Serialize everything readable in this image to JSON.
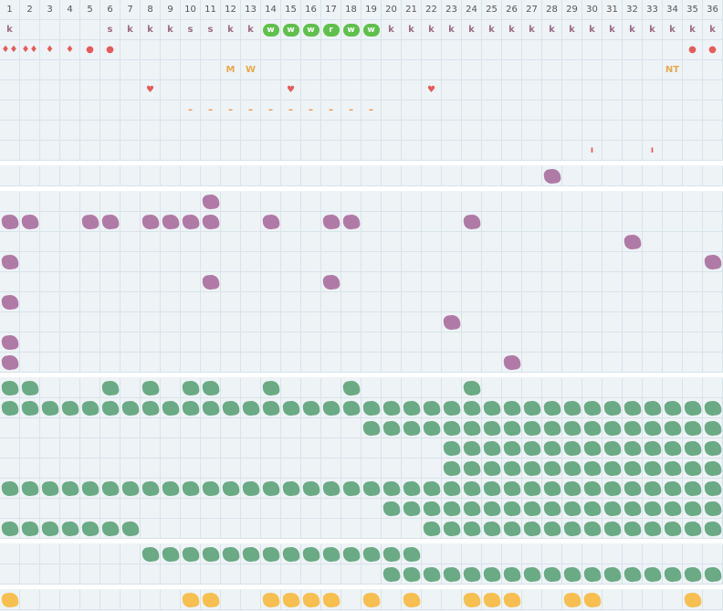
{
  "grid": {
    "columns": [
      "1",
      "2",
      "3",
      "4",
      "5",
      "6",
      "7",
      "8",
      "9",
      "10",
      "11",
      "12",
      "13",
      "14",
      "15",
      "16",
      "17",
      "18",
      "19",
      "20",
      "21",
      "22",
      "23",
      "24",
      "25",
      "26",
      "27",
      "28",
      "29",
      "30",
      "31",
      "32",
      "33",
      "34",
      "35",
      "36"
    ]
  },
  "colors": {
    "purple": "#b07aa6",
    "green": "#6aaa84",
    "bright_green": "#5fc04a",
    "yellow": "#f6bf4f",
    "red": "#e85a5a",
    "orange": "#f08a3c",
    "mark": "#9b6b86",
    "label": "#e9a94b"
  },
  "sections": [
    {
      "name": "top-section",
      "rows": [
        {
          "cells": [
            {
              "c": 1,
              "t": "text",
              "v": "k",
              "color": "mark"
            },
            {
              "c": 6,
              "t": "text",
              "v": "s",
              "color": "mark"
            },
            {
              "c": 7,
              "t": "text",
              "v": "k",
              "color": "mark"
            },
            {
              "c": 8,
              "t": "text",
              "v": "k",
              "color": "mark"
            },
            {
              "c": 9,
              "t": "text",
              "v": "k",
              "color": "mark"
            },
            {
              "c": 10,
              "t": "text",
              "v": "s",
              "color": "mark"
            },
            {
              "c": 11,
              "t": "text",
              "v": "s",
              "color": "mark"
            },
            {
              "c": 12,
              "t": "text",
              "v": "k",
              "color": "mark"
            },
            {
              "c": 13,
              "t": "text",
              "v": "k",
              "color": "mark"
            },
            {
              "c": 14,
              "t": "pill",
              "v": "w",
              "color": "bright_green"
            },
            {
              "c": 15,
              "t": "pill",
              "v": "w",
              "color": "bright_green"
            },
            {
              "c": 16,
              "t": "pill",
              "v": "w",
              "color": "bright_green"
            },
            {
              "c": 17,
              "t": "pill",
              "v": "r",
              "color": "bright_green"
            },
            {
              "c": 18,
              "t": "pill",
              "v": "w",
              "color": "bright_green"
            },
            {
              "c": 19,
              "t": "pill",
              "v": "w",
              "color": "bright_green"
            },
            {
              "c": 20,
              "t": "text",
              "v": "k",
              "color": "mark"
            },
            {
              "c": 21,
              "t": "text",
              "v": "k",
              "color": "mark"
            },
            {
              "c": 22,
              "t": "text",
              "v": "k",
              "color": "mark"
            },
            {
              "c": 23,
              "t": "text",
              "v": "k",
              "color": "mark"
            },
            {
              "c": 24,
              "t": "text",
              "v": "k",
              "color": "mark"
            },
            {
              "c": 25,
              "t": "text",
              "v": "k",
              "color": "mark"
            },
            {
              "c": 26,
              "t": "text",
              "v": "k",
              "color": "mark"
            },
            {
              "c": 27,
              "t": "text",
              "v": "k",
              "color": "mark"
            },
            {
              "c": 28,
              "t": "text",
              "v": "k",
              "color": "mark"
            },
            {
              "c": 29,
              "t": "text",
              "v": "k",
              "color": "mark"
            },
            {
              "c": 30,
              "t": "text",
              "v": "k",
              "color": "mark"
            },
            {
              "c": 31,
              "t": "text",
              "v": "k",
              "color": "mark"
            },
            {
              "c": 32,
              "t": "text",
              "v": "k",
              "color": "mark"
            },
            {
              "c": 33,
              "t": "text",
              "v": "k",
              "color": "mark"
            },
            {
              "c": 34,
              "t": "text",
              "v": "k",
              "color": "mark"
            },
            {
              "c": 35,
              "t": "text",
              "v": "k",
              "color": "mark"
            },
            {
              "c": 36,
              "t": "text",
              "v": "k",
              "color": "mark"
            }
          ]
        },
        {
          "cells": [
            {
              "c": 1,
              "t": "text",
              "v": "♦♦",
              "color": "red"
            },
            {
              "c": 2,
              "t": "text",
              "v": "♦♦",
              "color": "red"
            },
            {
              "c": 3,
              "t": "text",
              "v": "♦",
              "color": "red"
            },
            {
              "c": 4,
              "t": "text",
              "v": "♦",
              "color": "red"
            },
            {
              "c": 5,
              "t": "text",
              "v": "●",
              "color": "red"
            },
            {
              "c": 6,
              "t": "text",
              "v": "●",
              "color": "red"
            },
            {
              "c": 35,
              "t": "text",
              "v": "●",
              "color": "red"
            },
            {
              "c": 36,
              "t": "text",
              "v": "●",
              "color": "red"
            }
          ]
        },
        {
          "cells": [
            {
              "c": 12,
              "t": "text",
              "v": "M",
              "color": "label"
            },
            {
              "c": 13,
              "t": "text",
              "v": "W",
              "color": "label"
            },
            {
              "c": 34,
              "t": "text",
              "v": "NT",
              "color": "label"
            }
          ]
        },
        {
          "cells": [
            {
              "c": 8,
              "t": "text",
              "v": "♥",
              "color": "red"
            },
            {
              "c": 15,
              "t": "text",
              "v": "♥",
              "color": "red"
            },
            {
              "c": 22,
              "t": "text",
              "v": "♥",
              "color": "red"
            }
          ]
        },
        {
          "cells": [
            {
              "c": 10,
              "t": "text",
              "v": "–",
              "color": "orange"
            },
            {
              "c": 11,
              "t": "text",
              "v": "–",
              "color": "orange"
            },
            {
              "c": 12,
              "t": "text",
              "v": "–",
              "color": "orange"
            },
            {
              "c": 13,
              "t": "text",
              "v": "–",
              "color": "orange"
            },
            {
              "c": 14,
              "t": "text",
              "v": "–",
              "color": "orange"
            },
            {
              "c": 15,
              "t": "text",
              "v": "–",
              "color": "orange"
            },
            {
              "c": 16,
              "t": "text",
              "v": "–",
              "color": "orange"
            },
            {
              "c": 17,
              "t": "text",
              "v": "–",
              "color": "orange"
            },
            {
              "c": 18,
              "t": "text",
              "v": "–",
              "color": "orange"
            },
            {
              "c": 19,
              "t": "text",
              "v": "–",
              "color": "orange"
            }
          ]
        },
        {
          "cells": []
        },
        {
          "cells": [
            {
              "c": 30,
              "t": "text",
              "v": "ı",
              "color": "red"
            },
            {
              "c": 33,
              "t": "text",
              "v": "ı",
              "color": "red"
            }
          ]
        }
      ]
    },
    {
      "name": "single-purple-section",
      "rows": [
        {
          "cells": [
            {
              "c": 28,
              "t": "blot",
              "color": "purple"
            }
          ]
        }
      ]
    },
    {
      "name": "purple-section",
      "rows": [
        {
          "cells": [
            {
              "c": 11,
              "t": "blot",
              "color": "purple"
            }
          ]
        },
        {
          "cells": [
            {
              "c": 1,
              "t": "blot",
              "color": "purple"
            },
            {
              "c": 2,
              "t": "blot",
              "color": "purple"
            },
            {
              "c": 5,
              "t": "blot",
              "color": "purple"
            },
            {
              "c": 6,
              "t": "blot",
              "color": "purple"
            },
            {
              "c": 8,
              "t": "blot",
              "color": "purple"
            },
            {
              "c": 9,
              "t": "blot",
              "color": "purple"
            },
            {
              "c": 10,
              "t": "blot",
              "color": "purple"
            },
            {
              "c": 11,
              "t": "blot",
              "color": "purple"
            },
            {
              "c": 14,
              "t": "blot",
              "color": "purple"
            },
            {
              "c": 17,
              "t": "blot",
              "color": "purple"
            },
            {
              "c": 18,
              "t": "blot",
              "color": "purple"
            },
            {
              "c": 24,
              "t": "blot",
              "color": "purple"
            }
          ]
        },
        {
          "cells": [
            {
              "c": 32,
              "t": "blot",
              "color": "purple"
            }
          ]
        },
        {
          "cells": [
            {
              "c": 1,
              "t": "blot",
              "color": "purple"
            },
            {
              "c": 36,
              "t": "blot",
              "color": "purple"
            }
          ]
        },
        {
          "cells": [
            {
              "c": 11,
              "t": "blot",
              "color": "purple"
            },
            {
              "c": 17,
              "t": "blot",
              "color": "purple"
            }
          ]
        },
        {
          "cells": [
            {
              "c": 1,
              "t": "blot",
              "color": "purple"
            }
          ]
        },
        {
          "cells": [
            {
              "c": 23,
              "t": "blot",
              "color": "purple"
            }
          ]
        },
        {
          "cells": [
            {
              "c": 1,
              "t": "blot",
              "color": "purple"
            }
          ]
        },
        {
          "cells": [
            {
              "c": 1,
              "t": "blot",
              "color": "purple"
            },
            {
              "c": 26,
              "t": "blot",
              "color": "purple"
            }
          ]
        }
      ]
    },
    {
      "name": "green-section",
      "rows": [
        {
          "cells": [
            {
              "c": 1,
              "t": "blot",
              "color": "green"
            },
            {
              "c": 2,
              "t": "blot",
              "color": "green"
            },
            {
              "c": 6,
              "t": "blot",
              "color": "green"
            },
            {
              "c": 8,
              "t": "blot",
              "color": "green"
            },
            {
              "c": 10,
              "t": "blot",
              "color": "green"
            },
            {
              "c": 11,
              "t": "blot",
              "color": "green"
            },
            {
              "c": 14,
              "t": "blot",
              "color": "green"
            },
            {
              "c": 18,
              "t": "blot",
              "color": "green"
            },
            {
              "c": 24,
              "t": "blot",
              "color": "green"
            }
          ]
        },
        {
          "range": [
            1,
            36
          ],
          "color": "green"
        },
        {
          "range": [
            19,
            36
          ],
          "color": "green"
        },
        {
          "range": [
            23,
            36
          ],
          "color": "green"
        },
        {
          "range": [
            23,
            36
          ],
          "color": "green"
        },
        {
          "range": [
            1,
            36
          ],
          "color": "green"
        },
        {
          "range": [
            20,
            36
          ],
          "color": "green"
        },
        {
          "ranges": [
            [
              1,
              7
            ],
            [
              22,
              36
            ]
          ],
          "color": "green"
        }
      ]
    },
    {
      "name": "green-section-2",
      "rows": [
        {
          "range": [
            8,
            21
          ],
          "color": "green"
        },
        {
          "range": [
            20,
            36
          ],
          "color": "green"
        }
      ]
    },
    {
      "name": "yellow-section",
      "rows": [
        {
          "cells": [
            {
              "c": 1,
              "t": "blot",
              "color": "yellow"
            },
            {
              "c": 10,
              "t": "blot",
              "color": "yellow"
            },
            {
              "c": 11,
              "t": "blot",
              "color": "yellow"
            },
            {
              "c": 14,
              "t": "blot",
              "color": "yellow"
            },
            {
              "c": 15,
              "t": "blot",
              "color": "yellow"
            },
            {
              "c": 16,
              "t": "blot",
              "color": "yellow"
            },
            {
              "c": 17,
              "t": "blot",
              "color": "yellow"
            },
            {
              "c": 19,
              "t": "blot",
              "color": "yellow"
            },
            {
              "c": 21,
              "t": "blot",
              "color": "yellow"
            },
            {
              "c": 24,
              "t": "blot",
              "color": "yellow"
            },
            {
              "c": 25,
              "t": "blot",
              "color": "yellow"
            },
            {
              "c": 26,
              "t": "blot",
              "color": "yellow"
            },
            {
              "c": 29,
              "t": "blot",
              "color": "yellow"
            },
            {
              "c": 30,
              "t": "blot",
              "color": "yellow"
            },
            {
              "c": 35,
              "t": "blot",
              "color": "yellow"
            }
          ]
        }
      ]
    }
  ]
}
